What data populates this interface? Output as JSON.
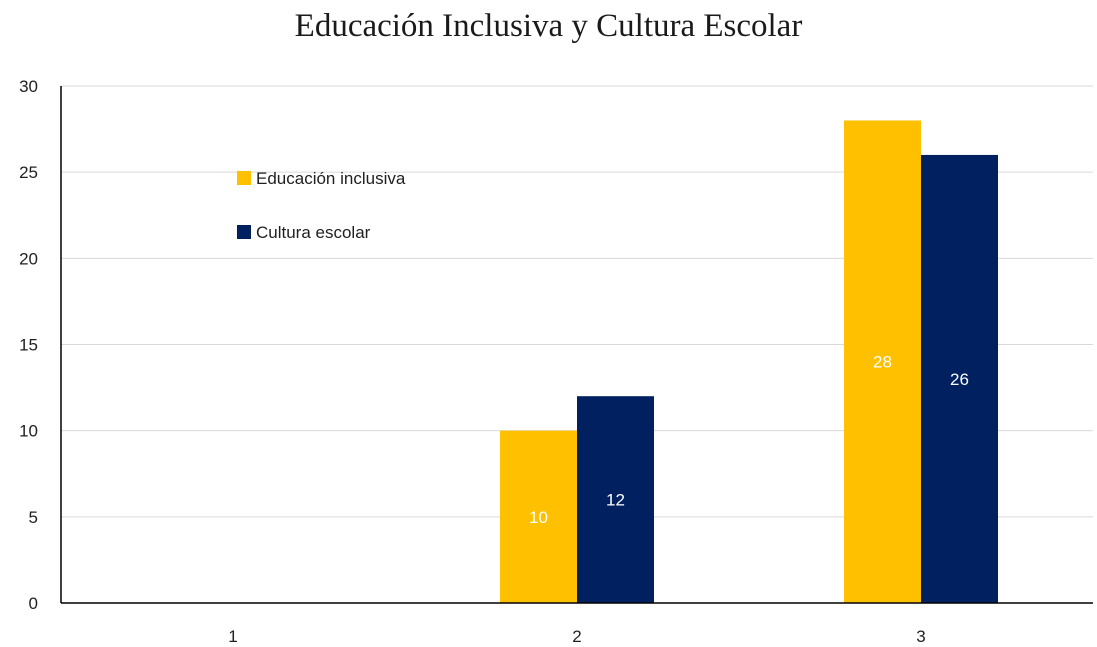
{
  "chart_data": {
    "type": "bar",
    "title": "Educación Inclusiva  y Cultura Escolar",
    "xlabel": "",
    "ylabel": "",
    "categories": [
      "1",
      "2",
      "3"
    ],
    "series": [
      {
        "name": "Educación inclusiva",
        "color": "#FFC000",
        "values": [
          0,
          10,
          28
        ]
      },
      {
        "name": "Cultura escolar",
        "color": "#002060",
        "values": [
          0,
          12,
          26
        ]
      }
    ],
    "ylim": [
      0,
      30
    ],
    "yticks": [
      0,
      5,
      10,
      15,
      20,
      25,
      30
    ],
    "grid": true,
    "legend_position": "top-left"
  }
}
